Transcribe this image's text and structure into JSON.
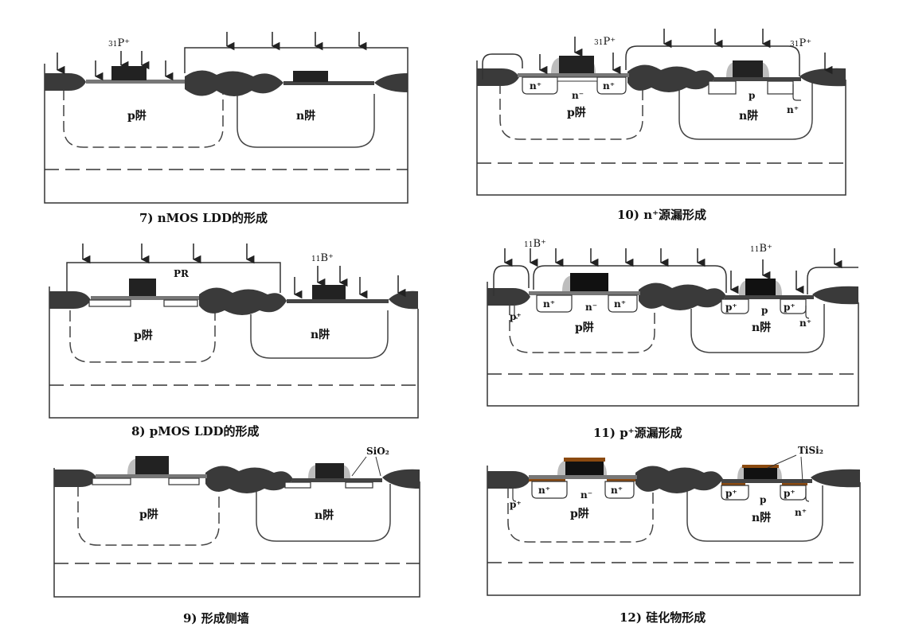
{
  "captions": {
    "p7": "7) nMOS LDD的形成",
    "p8": "8) pMOS LDD的形成",
    "p9": "9) 形成侧墙",
    "p10": "10) n⁺源漏形成",
    "p11": "11) p⁺源漏形成",
    "p12": "12) 硅化物形成"
  },
  "labels": {
    "pwell": "p阱",
    "nwell": "n阱",
    "pr": "PR",
    "n_plus": "n⁺",
    "n_minus": "n⁻",
    "p_plus": "p⁺",
    "p": "p",
    "sio2": "SiO₂",
    "tisi2": "TiSi₂"
  },
  "ions": {
    "phosphorus_mass": "31",
    "phosphorus": "P⁺",
    "boron_mass": "11",
    "boron": "B⁺"
  },
  "colors": {
    "oxide": "#3a3a3a",
    "gate": "#111111",
    "spacer": "#bdbdbd",
    "silicide": "#8b4a10",
    "line": "#333333"
  }
}
